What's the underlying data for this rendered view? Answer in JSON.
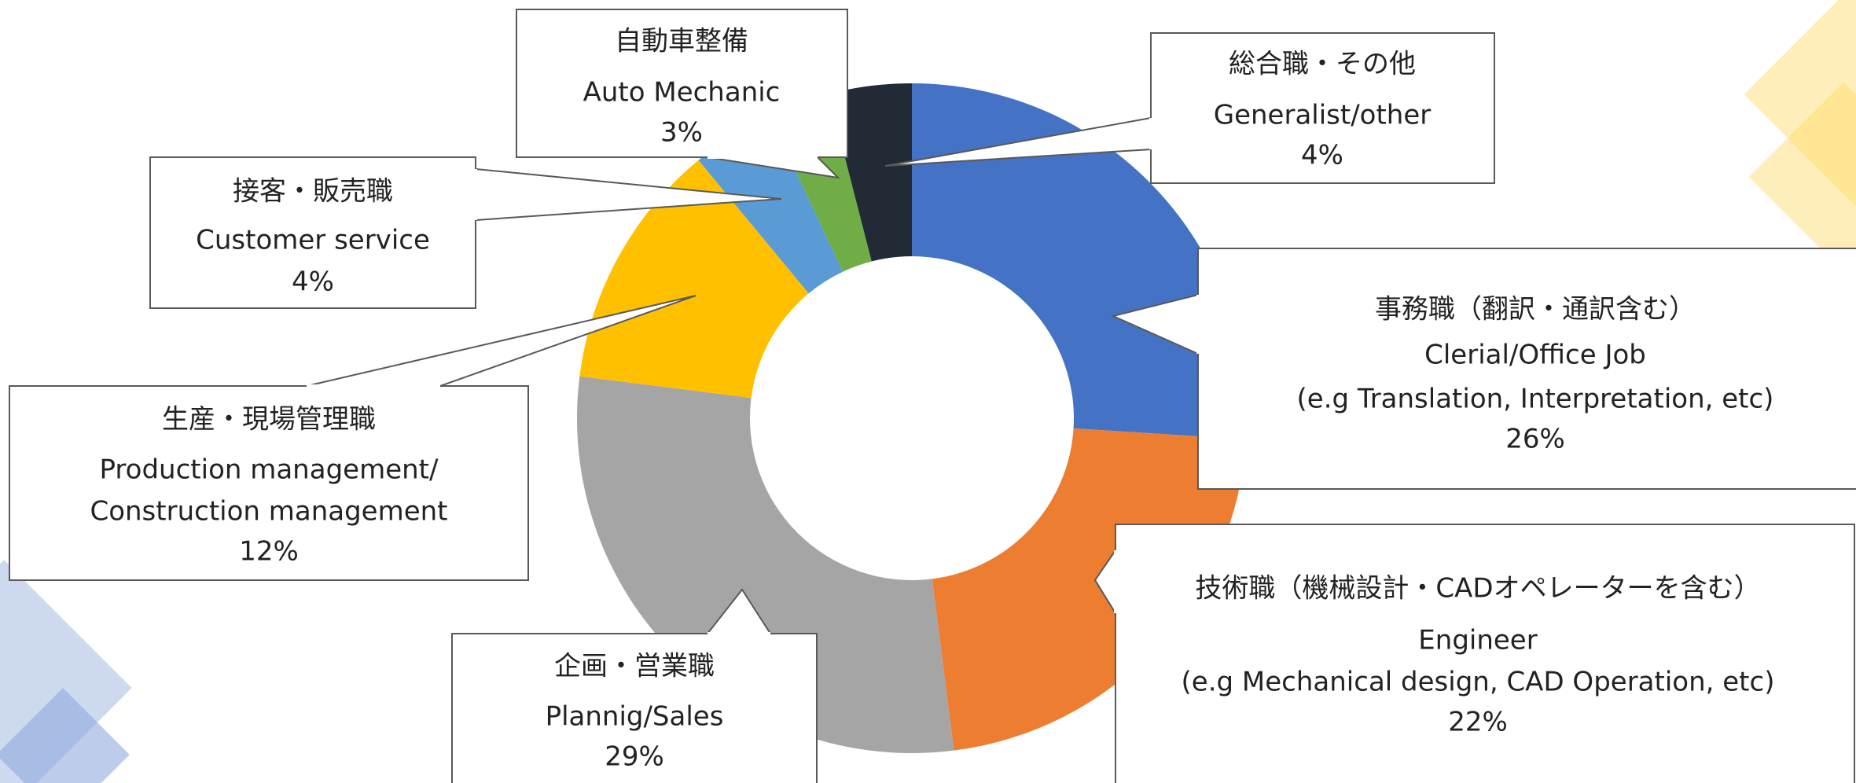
{
  "chart_data": {
    "type": "donut",
    "categories_ja": [
      "事務職（翻訳・通訳含む）",
      "技術職（機械設計・CADオペレーターを含む）",
      "企画・営業職",
      "生産・現場管理職",
      "接客・販売職",
      "自動車整備",
      "総合職・その他"
    ],
    "categories": [
      [
        "Clerial/Office Job",
        "(e.g Translation, Interpretation, etc)"
      ],
      [
        "Engineer",
        "(e.g Mechanical design, CAD Operation, etc)"
      ],
      [
        "Plannig/Sales"
      ],
      [
        "Production management/",
        "Construction management"
      ],
      [
        "Customer service"
      ],
      [
        "Auto Mechanic"
      ],
      [
        "Generalist/other"
      ]
    ],
    "values": [
      26,
      22,
      29,
      12,
      4,
      3,
      4
    ],
    "value_labels": [
      "26%",
      "22%",
      "29%",
      "12%",
      "4%",
      "3%",
      "4%"
    ],
    "colors": [
      "#4472c4",
      "#ed7d31",
      "#a5a5a5",
      "#ffc000",
      "#5b9bd5",
      "#70ad47",
      "#222a35"
    ]
  }
}
